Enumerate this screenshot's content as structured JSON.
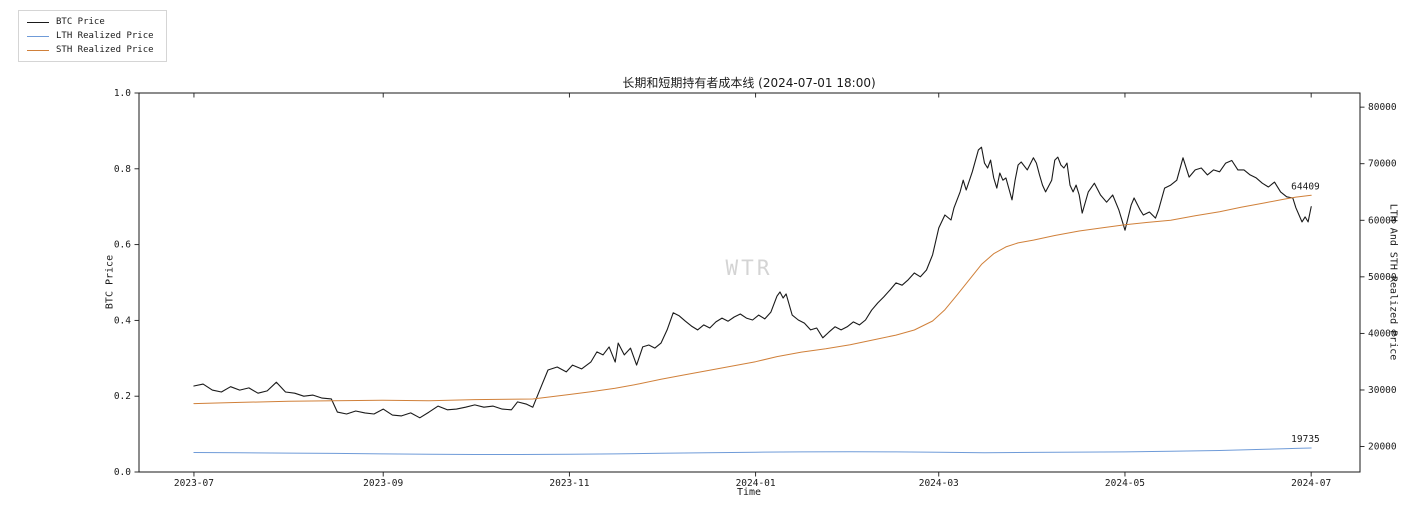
{
  "figure": {
    "watermark": "WTR"
  },
  "legend": {
    "items": [
      {
        "label": "BTC Price",
        "color": "#1a1a1a"
      },
      {
        "label": "LTH Realized Price",
        "color": "#6f9bd8"
      },
      {
        "label": "STH Realized Price",
        "color": "#d0803a"
      }
    ]
  },
  "chart_data": {
    "type": "line",
    "title": "长期和短期持有者成本线 (2024-07-01 18:00)",
    "xlabel": "Time",
    "ylabel_left": "BTC Price",
    "ylabel_right": "LTH And STH Realized Price",
    "x_range": [
      "2023-07-01",
      "2024-07-01"
    ],
    "grid": false,
    "legend_position": "upper-left-outside",
    "axes": {
      "x": {
        "ticks": [
          "2023-07",
          "2023-09",
          "2023-11",
          "2024-01",
          "2024-03",
          "2024-05",
          "2024-07"
        ]
      },
      "left": {
        "min": 0.0,
        "max": 1.0,
        "ticks": [
          0.0,
          0.2,
          0.4,
          0.6,
          0.8,
          1.0
        ]
      },
      "right": {
        "min": 15500,
        "max": 82500,
        "ticks": [
          20000,
          30000,
          40000,
          50000,
          60000,
          70000,
          80000
        ]
      }
    },
    "series": [
      {
        "name": "BTC Price",
        "axis": "left",
        "color": "#1a1a1a",
        "width": 1.1,
        "points": [
          [
            "2023-07-01",
            0.227
          ],
          [
            "2023-07-04",
            0.232
          ],
          [
            "2023-07-07",
            0.216
          ],
          [
            "2023-07-10",
            0.211
          ],
          [
            "2023-07-13",
            0.225
          ],
          [
            "2023-07-16",
            0.216
          ],
          [
            "2023-07-19",
            0.222
          ],
          [
            "2023-07-22",
            0.208
          ],
          [
            "2023-07-25",
            0.214
          ],
          [
            "2023-07-28",
            0.237
          ],
          [
            "2023-07-31",
            0.211
          ],
          [
            "2023-08-03",
            0.208
          ],
          [
            "2023-08-06",
            0.2
          ],
          [
            "2023-08-09",
            0.203
          ],
          [
            "2023-08-12",
            0.195
          ],
          [
            "2023-08-15",
            0.193
          ],
          [
            "2023-08-17",
            0.158
          ],
          [
            "2023-08-20",
            0.153
          ],
          [
            "2023-08-23",
            0.161
          ],
          [
            "2023-08-26",
            0.156
          ],
          [
            "2023-08-29",
            0.153
          ],
          [
            "2023-09-01",
            0.166
          ],
          [
            "2023-09-04",
            0.15
          ],
          [
            "2023-09-07",
            0.148
          ],
          [
            "2023-09-10",
            0.156
          ],
          [
            "2023-09-13",
            0.143
          ],
          [
            "2023-09-16",
            0.158
          ],
          [
            "2023-09-19",
            0.174
          ],
          [
            "2023-09-22",
            0.164
          ],
          [
            "2023-09-25",
            0.166
          ],
          [
            "2023-09-28",
            0.171
          ],
          [
            "2023-10-01",
            0.177
          ],
          [
            "2023-10-04",
            0.171
          ],
          [
            "2023-10-07",
            0.174
          ],
          [
            "2023-10-10",
            0.166
          ],
          [
            "2023-10-13",
            0.164
          ],
          [
            "2023-10-15",
            0.185
          ],
          [
            "2023-10-18",
            0.179
          ],
          [
            "2023-10-20",
            0.171
          ],
          [
            "2023-10-23",
            0.23
          ],
          [
            "2023-10-25",
            0.269
          ],
          [
            "2023-10-28",
            0.277
          ],
          [
            "2023-10-31",
            0.264
          ],
          [
            "2023-11-02",
            0.282
          ],
          [
            "2023-11-05",
            0.272
          ],
          [
            "2023-11-08",
            0.29
          ],
          [
            "2023-11-10",
            0.317
          ],
          [
            "2023-11-12",
            0.309
          ],
          [
            "2023-11-14",
            0.33
          ],
          [
            "2023-11-16",
            0.29
          ],
          [
            "2023-11-17",
            0.34
          ],
          [
            "2023-11-19",
            0.309
          ],
          [
            "2023-11-21",
            0.327
          ],
          [
            "2023-11-23",
            0.282
          ],
          [
            "2023-11-25",
            0.33
          ],
          [
            "2023-11-27",
            0.335
          ],
          [
            "2023-11-29",
            0.327
          ],
          [
            "2023-12-01",
            0.34
          ],
          [
            "2023-12-03",
            0.375
          ],
          [
            "2023-12-05",
            0.42
          ],
          [
            "2023-12-07",
            0.412
          ],
          [
            "2023-12-09",
            0.398
          ],
          [
            "2023-12-11",
            0.385
          ],
          [
            "2023-12-13",
            0.375
          ],
          [
            "2023-12-15",
            0.388
          ],
          [
            "2023-12-17",
            0.38
          ],
          [
            "2023-12-19",
            0.396
          ],
          [
            "2023-12-21",
            0.406
          ],
          [
            "2023-12-23",
            0.398
          ],
          [
            "2023-12-25",
            0.409
          ],
          [
            "2023-12-27",
            0.417
          ],
          [
            "2023-12-29",
            0.406
          ],
          [
            "2023-12-31",
            0.401
          ],
          [
            "2024-01-02",
            0.414
          ],
          [
            "2024-01-04",
            0.404
          ],
          [
            "2024-01-06",
            0.422
          ],
          [
            "2024-01-08",
            0.464
          ],
          [
            "2024-01-09",
            0.475
          ],
          [
            "2024-01-10",
            0.459
          ],
          [
            "2024-01-11",
            0.47
          ],
          [
            "2024-01-13",
            0.414
          ],
          [
            "2024-01-15",
            0.401
          ],
          [
            "2024-01-17",
            0.393
          ],
          [
            "2024-01-19",
            0.375
          ],
          [
            "2024-01-21",
            0.38
          ],
          [
            "2024-01-23",
            0.354
          ],
          [
            "2024-01-25",
            0.369
          ],
          [
            "2024-01-27",
            0.383
          ],
          [
            "2024-01-29",
            0.375
          ],
          [
            "2024-01-31",
            0.383
          ],
          [
            "2024-02-02",
            0.396
          ],
          [
            "2024-02-04",
            0.388
          ],
          [
            "2024-02-06",
            0.401
          ],
          [
            "2024-02-08",
            0.427
          ],
          [
            "2024-02-10",
            0.446
          ],
          [
            "2024-02-12",
            0.462
          ],
          [
            "2024-02-14",
            0.48
          ],
          [
            "2024-02-16",
            0.499
          ],
          [
            "2024-02-18",
            0.493
          ],
          [
            "2024-02-20",
            0.507
          ],
          [
            "2024-02-22",
            0.525
          ],
          [
            "2024-02-24",
            0.515
          ],
          [
            "2024-02-26",
            0.533
          ],
          [
            "2024-02-28",
            0.573
          ],
          [
            "2024-03-01",
            0.644
          ],
          [
            "2024-03-03",
            0.678
          ],
          [
            "2024-03-05",
            0.665
          ],
          [
            "2024-03-06",
            0.697
          ],
          [
            "2024-03-08",
            0.739
          ],
          [
            "2024-03-09",
            0.77
          ],
          [
            "2024-03-10",
            0.744
          ],
          [
            "2024-03-12",
            0.792
          ],
          [
            "2024-03-14",
            0.85
          ],
          [
            "2024-03-15",
            0.857
          ],
          [
            "2024-03-16",
            0.815
          ],
          [
            "2024-03-17",
            0.802
          ],
          [
            "2024-03-18",
            0.823
          ],
          [
            "2024-03-19",
            0.776
          ],
          [
            "2024-03-20",
            0.749
          ],
          [
            "2024-03-21",
            0.789
          ],
          [
            "2024-03-22",
            0.77
          ],
          [
            "2024-03-23",
            0.776
          ],
          [
            "2024-03-25",
            0.718
          ],
          [
            "2024-03-26",
            0.77
          ],
          [
            "2024-03-27",
            0.81
          ],
          [
            "2024-03-28",
            0.818
          ],
          [
            "2024-03-30",
            0.797
          ],
          [
            "2024-04-01",
            0.829
          ],
          [
            "2024-04-02",
            0.815
          ],
          [
            "2024-04-03",
            0.784
          ],
          [
            "2024-04-04",
            0.757
          ],
          [
            "2024-04-05",
            0.739
          ],
          [
            "2024-04-07",
            0.77
          ],
          [
            "2024-04-08",
            0.823
          ],
          [
            "2024-04-09",
            0.831
          ],
          [
            "2024-04-10",
            0.81
          ],
          [
            "2024-04-11",
            0.802
          ],
          [
            "2024-04-12",
            0.815
          ],
          [
            "2024-04-13",
            0.757
          ],
          [
            "2024-04-14",
            0.739
          ],
          [
            "2024-04-15",
            0.757
          ],
          [
            "2024-04-16",
            0.731
          ],
          [
            "2024-04-17",
            0.683
          ],
          [
            "2024-04-19",
            0.739
          ],
          [
            "2024-04-21",
            0.762
          ],
          [
            "2024-04-23",
            0.731
          ],
          [
            "2024-04-25",
            0.712
          ],
          [
            "2024-04-27",
            0.731
          ],
          [
            "2024-04-29",
            0.691
          ],
          [
            "2024-05-01",
            0.638
          ],
          [
            "2024-05-03",
            0.704
          ],
          [
            "2024-05-04",
            0.723
          ],
          [
            "2024-05-06",
            0.691
          ],
          [
            "2024-05-07",
            0.678
          ],
          [
            "2024-05-09",
            0.686
          ],
          [
            "2024-05-11",
            0.67
          ],
          [
            "2024-05-12",
            0.691
          ],
          [
            "2024-05-14",
            0.749
          ],
          [
            "2024-05-16",
            0.757
          ],
          [
            "2024-05-18",
            0.77
          ],
          [
            "2024-05-20",
            0.829
          ],
          [
            "2024-05-22",
            0.778
          ],
          [
            "2024-05-24",
            0.797
          ],
          [
            "2024-05-26",
            0.802
          ],
          [
            "2024-05-28",
            0.784
          ],
          [
            "2024-05-30",
            0.797
          ],
          [
            "2024-06-01",
            0.792
          ],
          [
            "2024-06-03",
            0.815
          ],
          [
            "2024-06-05",
            0.822
          ],
          [
            "2024-06-07",
            0.797
          ],
          [
            "2024-06-09",
            0.797
          ],
          [
            "2024-06-11",
            0.784
          ],
          [
            "2024-06-13",
            0.776
          ],
          [
            "2024-06-15",
            0.762
          ],
          [
            "2024-06-17",
            0.752
          ],
          [
            "2024-06-19",
            0.765
          ],
          [
            "2024-06-21",
            0.739
          ],
          [
            "2024-06-23",
            0.726
          ],
          [
            "2024-06-25",
            0.723
          ],
          [
            "2024-06-26",
            0.697
          ],
          [
            "2024-06-28",
            0.66
          ],
          [
            "2024-06-29",
            0.673
          ],
          [
            "2024-06-30",
            0.66
          ],
          [
            "2024-07-01",
            0.7
          ]
        ]
      },
      {
        "name": "LTH Realized Price",
        "axis": "right",
        "color": "#6f9bd8",
        "width": 1.0,
        "points": [
          [
            "2023-07-01",
            18950
          ],
          [
            "2023-07-16",
            18900
          ],
          [
            "2023-08-01",
            18850
          ],
          [
            "2023-08-16",
            18780
          ],
          [
            "2023-09-01",
            18700
          ],
          [
            "2023-09-16",
            18650
          ],
          [
            "2023-10-01",
            18600
          ],
          [
            "2023-10-16",
            18600
          ],
          [
            "2023-11-01",
            18650
          ],
          [
            "2023-11-16",
            18700
          ],
          [
            "2023-12-01",
            18800
          ],
          [
            "2023-12-16",
            18900
          ],
          [
            "2024-01-01",
            19000
          ],
          [
            "2024-01-16",
            19060
          ],
          [
            "2024-02-01",
            19080
          ],
          [
            "2024-02-16",
            19060
          ],
          [
            "2024-03-01",
            19000
          ],
          [
            "2024-03-16",
            18920
          ],
          [
            "2024-04-01",
            18960
          ],
          [
            "2024-04-16",
            19010
          ],
          [
            "2024-05-01",
            19060
          ],
          [
            "2024-05-16",
            19160
          ],
          [
            "2024-06-01",
            19300
          ],
          [
            "2024-06-10",
            19420
          ],
          [
            "2024-06-16",
            19520
          ],
          [
            "2024-06-22",
            19610
          ],
          [
            "2024-06-26",
            19670
          ],
          [
            "2024-07-01",
            19735
          ]
        ]
      },
      {
        "name": "STH Realized Price",
        "axis": "right",
        "color": "#d0803a",
        "width": 1.0,
        "points": [
          [
            "2023-07-01",
            27600
          ],
          [
            "2023-07-16",
            27800
          ],
          [
            "2023-08-01",
            28000
          ],
          [
            "2023-08-16",
            28100
          ],
          [
            "2023-09-01",
            28200
          ],
          [
            "2023-09-16",
            28100
          ],
          [
            "2023-10-01",
            28300
          ],
          [
            "2023-10-12",
            28350
          ],
          [
            "2023-10-20",
            28400
          ],
          [
            "2023-10-26",
            28800
          ],
          [
            "2023-11-01",
            29200
          ],
          [
            "2023-11-08",
            29700
          ],
          [
            "2023-11-16",
            30300
          ],
          [
            "2023-11-24",
            31100
          ],
          [
            "2023-12-01",
            31900
          ],
          [
            "2023-12-08",
            32600
          ],
          [
            "2023-12-16",
            33400
          ],
          [
            "2023-12-24",
            34200
          ],
          [
            "2024-01-01",
            35000
          ],
          [
            "2024-01-08",
            35900
          ],
          [
            "2024-01-16",
            36700
          ],
          [
            "2024-01-24",
            37300
          ],
          [
            "2024-02-01",
            38000
          ],
          [
            "2024-02-08",
            38800
          ],
          [
            "2024-02-16",
            39700
          ],
          [
            "2024-02-22",
            40600
          ],
          [
            "2024-02-28",
            42200
          ],
          [
            "2024-03-03",
            44200
          ],
          [
            "2024-03-07",
            46800
          ],
          [
            "2024-03-11",
            49500
          ],
          [
            "2024-03-15",
            52200
          ],
          [
            "2024-03-19",
            54100
          ],
          [
            "2024-03-23",
            55300
          ],
          [
            "2024-03-27",
            56000
          ],
          [
            "2024-04-01",
            56500
          ],
          [
            "2024-04-08",
            57300
          ],
          [
            "2024-04-16",
            58100
          ],
          [
            "2024-04-24",
            58700
          ],
          [
            "2024-05-01",
            59200
          ],
          [
            "2024-05-08",
            59600
          ],
          [
            "2024-05-16",
            60000
          ],
          [
            "2024-05-24",
            60800
          ],
          [
            "2024-06-01",
            61500
          ],
          [
            "2024-06-08",
            62300
          ],
          [
            "2024-06-16",
            63100
          ],
          [
            "2024-06-22",
            63700
          ],
          [
            "2024-06-26",
            64100
          ],
          [
            "2024-07-01",
            64409
          ]
        ]
      }
    ],
    "annotations": [
      {
        "text": "64409",
        "value": 64409,
        "series": "STH Realized Price"
      },
      {
        "text": "19735",
        "value": 19735,
        "series": "LTH Realized Price"
      }
    ]
  }
}
